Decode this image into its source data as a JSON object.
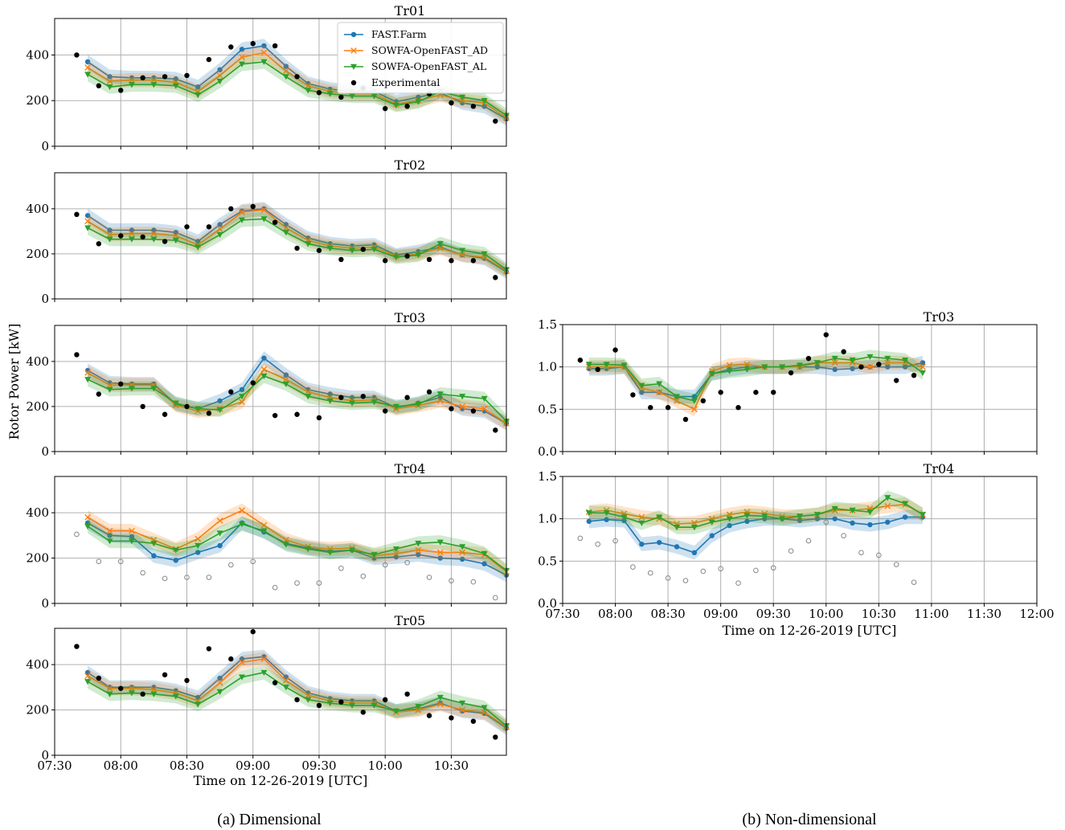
{
  "captions": {
    "a": "(a) Dimensional",
    "b": "(b) Non-dimensional"
  },
  "y_label_left": "Rotor Power [kW]",
  "x_label": "Time on 12-26-2019 [UTC]",
  "colors": {
    "farm": "#1f77b4",
    "ad": "#ff7f0e",
    "al": "#2ca02c",
    "exp": "#000000",
    "exp_open": "#888888"
  },
  "legend": [
    "FAST.Farm",
    "SOWFA-OpenFAST_AD",
    "SOWFA-OpenFAST_AL",
    "Experimental"
  ],
  "x_ticks_a": [
    "07:30",
    "08:00",
    "08:30",
    "09:00",
    "09:30",
    "10:00",
    "10:30"
  ],
  "x_ticks_b": [
    "07:30",
    "08:00",
    "08:30",
    "09:00",
    "09:30",
    "10:00",
    "10:30",
    "11:00",
    "11:30",
    "12:00"
  ],
  "chart_data": [
    {
      "type": "line",
      "title": "Tr01",
      "xlim_min": [
        450,
        655
      ],
      "ylim": [
        0,
        560
      ],
      "yticks": [
        "0",
        "200",
        "400"
      ],
      "x_min": [
        465,
        475,
        485,
        495,
        505,
        515,
        525,
        535,
        545,
        555,
        565,
        575,
        585,
        595,
        605,
        615,
        625,
        635,
        645,
        655
      ],
      "series": [
        {
          "name": "FAST.Farm",
          "values": [
            370,
            305,
            300,
            300,
            295,
            260,
            335,
            425,
            440,
            350,
            275,
            250,
            240,
            240,
            195,
            215,
            235,
            190,
            175,
            120
          ]
        },
        {
          "name": "SOWFA-OpenFAST_AD",
          "values": [
            345,
            285,
            290,
            290,
            280,
            240,
            310,
            390,
            410,
            330,
            265,
            240,
            230,
            230,
            185,
            200,
            225,
            200,
            190,
            125
          ]
        },
        {
          "name": "SOWFA-OpenFAST_AL",
          "values": [
            315,
            260,
            270,
            270,
            265,
            225,
            285,
            360,
            370,
            305,
            245,
            230,
            220,
            220,
            180,
            195,
            240,
            215,
            200,
            135
          ]
        },
        {
          "name": "Experimental",
          "x_min": [
            460,
            470,
            480,
            490,
            500,
            510,
            520,
            530,
            540,
            550,
            560,
            570,
            580,
            590,
            600,
            610,
            620,
            630,
            640,
            650
          ],
          "values": [
            400,
            265,
            245,
            300,
            305,
            310,
            380,
            435,
            450,
            440,
            305,
            235,
            215,
            255,
            165,
            175,
            230,
            190,
            175,
            110
          ]
        }
      ]
    },
    {
      "type": "line",
      "title": "Tr02",
      "xlim_min": [
        450,
        655
      ],
      "ylim": [
        0,
        560
      ],
      "yticks": [
        "0",
        "200",
        "400"
      ],
      "x_min": [
        465,
        475,
        485,
        495,
        505,
        515,
        525,
        535,
        545,
        555,
        565,
        575,
        585,
        595,
        605,
        615,
        625,
        635,
        645,
        655
      ],
      "series": [
        {
          "name": "FAST.Farm",
          "values": [
            370,
            305,
            305,
            305,
            295,
            255,
            330,
            390,
            400,
            330,
            270,
            245,
            235,
            240,
            195,
            210,
            230,
            195,
            180,
            120
          ]
        },
        {
          "name": "SOWFA-OpenFAST_AD",
          "values": [
            345,
            285,
            290,
            290,
            280,
            240,
            310,
            385,
            395,
            315,
            260,
            235,
            225,
            230,
            190,
            200,
            225,
            195,
            185,
            125
          ]
        },
        {
          "name": "SOWFA-OpenFAST_AL",
          "values": [
            315,
            265,
            265,
            265,
            260,
            230,
            285,
            350,
            355,
            295,
            245,
            225,
            215,
            220,
            185,
            195,
            245,
            215,
            200,
            130
          ]
        },
        {
          "name": "Experimental",
          "x_min": [
            460,
            470,
            480,
            490,
            500,
            510,
            520,
            530,
            540,
            550,
            560,
            570,
            580,
            590,
            600,
            610,
            620,
            630,
            640,
            650
          ],
          "values": [
            375,
            245,
            280,
            275,
            255,
            320,
            320,
            400,
            410,
            340,
            225,
            215,
            175,
            220,
            170,
            190,
            175,
            170,
            170,
            95
          ]
        }
      ]
    },
    {
      "type": "line",
      "title": "Tr03",
      "xlim_min": [
        450,
        655
      ],
      "ylim": [
        0,
        560
      ],
      "yticks": [
        "0",
        "200",
        "400"
      ],
      "x_min": [
        465,
        475,
        485,
        495,
        505,
        515,
        525,
        535,
        545,
        555,
        565,
        575,
        585,
        595,
        605,
        615,
        625,
        635,
        645,
        655
      ],
      "series": [
        {
          "name": "FAST.Farm",
          "values": [
            360,
            305,
            300,
            300,
            210,
            190,
            225,
            275,
            415,
            340,
            275,
            255,
            240,
            240,
            195,
            215,
            240,
            190,
            180,
            125
          ]
        },
        {
          "name": "SOWFA-OpenFAST_AD",
          "values": [
            350,
            295,
            295,
            295,
            205,
            180,
            190,
            220,
            365,
            320,
            265,
            240,
            225,
            230,
            190,
            205,
            225,
            200,
            190,
            125
          ]
        },
        {
          "name": "SOWFA-OpenFAST_AL",
          "values": [
            320,
            275,
            280,
            280,
            215,
            190,
            185,
            245,
            335,
            300,
            245,
            225,
            215,
            220,
            200,
            210,
            255,
            245,
            235,
            135
          ]
        },
        {
          "name": "Experimental",
          "x_min": [
            460,
            470,
            480,
            490,
            500,
            510,
            520,
            530,
            540,
            550,
            560,
            570,
            580,
            590,
            600,
            610,
            620,
            630,
            640,
            650
          ],
          "values": [
            430,
            255,
            300,
            200,
            165,
            200,
            170,
            265,
            305,
            160,
            165,
            150,
            240,
            245,
            180,
            240,
            265,
            190,
            180,
            95
          ]
        }
      ]
    },
    {
      "type": "line",
      "title": "Tr04",
      "xlim_min": [
        450,
        655
      ],
      "ylim": [
        0,
        560
      ],
      "yticks": [
        "0",
        "200",
        "400"
      ],
      "x_min": [
        465,
        475,
        485,
        495,
        505,
        515,
        525,
        535,
        545,
        555,
        565,
        575,
        585,
        595,
        605,
        615,
        625,
        635,
        645,
        655
      ],
      "series": [
        {
          "name": "FAST.Farm",
          "values": [
            355,
            300,
            295,
            210,
            190,
            225,
            255,
            355,
            315,
            265,
            245,
            230,
            235,
            200,
            205,
            215,
            200,
            195,
            175,
            125
          ]
        },
        {
          "name": "SOWFA-OpenFAST_AD",
          "values": [
            380,
            320,
            320,
            280,
            240,
            285,
            365,
            410,
            345,
            280,
            250,
            240,
            245,
            210,
            220,
            235,
            225,
            225,
            215,
            140
          ]
        },
        {
          "name": "SOWFA-OpenFAST_AL",
          "values": [
            340,
            275,
            275,
            265,
            235,
            255,
            310,
            350,
            320,
            260,
            240,
            225,
            235,
            215,
            240,
            265,
            270,
            250,
            220,
            145
          ]
        },
        {
          "name": "Experimental",
          "x_min": [
            460,
            470,
            480,
            490,
            500,
            510,
            520,
            530,
            540,
            550,
            560,
            570,
            580,
            590,
            600,
            610,
            620,
            630,
            640,
            650
          ],
          "values": [
            305,
            185,
            185,
            135,
            110,
            115,
            115,
            170,
            185,
            70,
            90,
            90,
            155,
            120,
            170,
            180,
            115,
            100,
            95,
            25
          ]
        }
      ]
    },
    {
      "type": "line",
      "title": "Tr05",
      "xlim_min": [
        450,
        655
      ],
      "ylim": [
        0,
        560
      ],
      "yticks": [
        "0",
        "200",
        "400"
      ],
      "x_min": [
        465,
        475,
        485,
        495,
        505,
        515,
        525,
        535,
        545,
        555,
        565,
        575,
        585,
        595,
        605,
        615,
        625,
        635,
        645,
        655
      ],
      "series": [
        {
          "name": "FAST.Farm",
          "values": [
            365,
            300,
            300,
            300,
            285,
            255,
            340,
            425,
            435,
            345,
            275,
            250,
            240,
            240,
            195,
            205,
            230,
            195,
            185,
            120
          ]
        },
        {
          "name": "SOWFA-OpenFAST_AD",
          "values": [
            350,
            295,
            295,
            290,
            275,
            240,
            320,
            410,
            425,
            330,
            265,
            240,
            230,
            230,
            190,
            200,
            225,
            200,
            190,
            125
          ]
        },
        {
          "name": "SOWFA-OpenFAST_AL",
          "values": [
            325,
            270,
            275,
            270,
            260,
            225,
            280,
            345,
            365,
            300,
            245,
            230,
            220,
            220,
            195,
            215,
            255,
            230,
            210,
            130
          ]
        },
        {
          "name": "Experimental",
          "x_min": [
            460,
            470,
            480,
            490,
            500,
            510,
            520,
            530,
            540,
            550,
            560,
            570,
            580,
            590,
            600,
            610,
            620,
            630,
            640,
            650
          ],
          "values": [
            480,
            340,
            295,
            270,
            355,
            330,
            470,
            425,
            545,
            320,
            245,
            220,
            235,
            190,
            245,
            270,
            175,
            165,
            150,
            80
          ]
        }
      ]
    },
    {
      "type": "line",
      "title": "Tr03",
      "xlim_min": [
        450,
        720
      ],
      "ylim": [
        0,
        1.5
      ],
      "yticks": [
        "0.0",
        "0.5",
        "1.0",
        "1.5"
      ],
      "x_min": [
        465,
        475,
        485,
        495,
        505,
        515,
        525,
        535,
        545,
        555,
        565,
        575,
        585,
        595,
        605,
        615,
        625,
        635,
        645,
        655
      ],
      "series": [
        {
          "name": "FAST.Farm",
          "values": [
            0.98,
            0.98,
            1.0,
            0.7,
            0.7,
            0.65,
            0.65,
            0.92,
            0.97,
            1.0,
            1.0,
            1.0,
            1.0,
            1.0,
            0.97,
            0.98,
            1.0,
            1.0,
            1.0,
            1.05
          ]
        },
        {
          "name": "SOWFA-OpenFAST_AD",
          "values": [
            1.0,
            1.0,
            1.0,
            0.75,
            0.7,
            0.6,
            0.5,
            0.95,
            1.02,
            1.03,
            1.0,
            1.0,
            1.0,
            1.05,
            1.05,
            1.05,
            1.0,
            1.05,
            1.05,
            1.0
          ]
        },
        {
          "name": "SOWFA-OpenFAST_AL",
          "values": [
            1.03,
            1.03,
            1.02,
            0.78,
            0.8,
            0.65,
            0.6,
            0.92,
            0.95,
            0.97,
            1.0,
            1.0,
            1.02,
            1.05,
            1.1,
            1.08,
            1.12,
            1.1,
            1.08,
            0.93
          ]
        },
        {
          "name": "Experimental",
          "x_min": [
            460,
            470,
            480,
            490,
            500,
            510,
            520,
            530,
            540,
            550,
            560,
            570,
            580,
            590,
            600,
            610,
            620,
            630,
            640,
            650
          ],
          "values": [
            1.08,
            0.97,
            1.2,
            0.67,
            0.52,
            0.52,
            0.38,
            0.6,
            0.7,
            0.52,
            0.7,
            0.7,
            0.93,
            1.1,
            1.38,
            1.18,
            1.0,
            1.03,
            0.84,
            0.9
          ]
        }
      ]
    },
    {
      "type": "line",
      "title": "Tr04",
      "xlim_min": [
        450,
        720
      ],
      "ylim": [
        0,
        1.5
      ],
      "yticks": [
        "0.0",
        "0.5",
        "1.0",
        "1.5"
      ],
      "x_min": [
        465,
        475,
        485,
        495,
        505,
        515,
        525,
        535,
        545,
        555,
        565,
        575,
        585,
        595,
        605,
        615,
        625,
        635,
        645,
        655
      ],
      "series": [
        {
          "name": "FAST.Farm",
          "values": [
            0.97,
            0.99,
            0.98,
            0.7,
            0.72,
            0.67,
            0.6,
            0.8,
            0.92,
            0.97,
            1.0,
            1.0,
            0.98,
            1.0,
            1.0,
            0.95,
            0.93,
            0.96,
            1.02,
            1.02
          ]
        },
        {
          "name": "SOWFA-OpenFAST_AD",
          "values": [
            1.08,
            1.1,
            1.06,
            1.02,
            1.0,
            0.94,
            0.95,
            1.0,
            1.05,
            1.08,
            1.06,
            1.03,
            1.03,
            1.05,
            1.1,
            1.1,
            1.12,
            1.15,
            1.17,
            1.05
          ]
        },
        {
          "name": "SOWFA-OpenFAST_AL",
          "values": [
            1.07,
            1.07,
            1.02,
            0.95,
            1.02,
            0.9,
            0.9,
            0.96,
            1.0,
            1.04,
            1.03,
            1.0,
            1.03,
            1.05,
            1.12,
            1.1,
            1.08,
            1.25,
            1.18,
            1.05
          ]
        },
        {
          "name": "Experimental",
          "x_min": [
            460,
            470,
            480,
            490,
            500,
            510,
            520,
            530,
            540,
            550,
            560,
            570,
            580,
            590,
            600,
            610,
            620,
            630,
            640,
            650
          ],
          "values": [
            0.77,
            0.7,
            0.74,
            0.43,
            0.36,
            0.3,
            0.27,
            0.38,
            0.41,
            0.24,
            0.39,
            0.42,
            0.62,
            0.74,
            0.96,
            0.8,
            0.6,
            0.57,
            0.46,
            0.25
          ]
        }
      ]
    }
  ]
}
